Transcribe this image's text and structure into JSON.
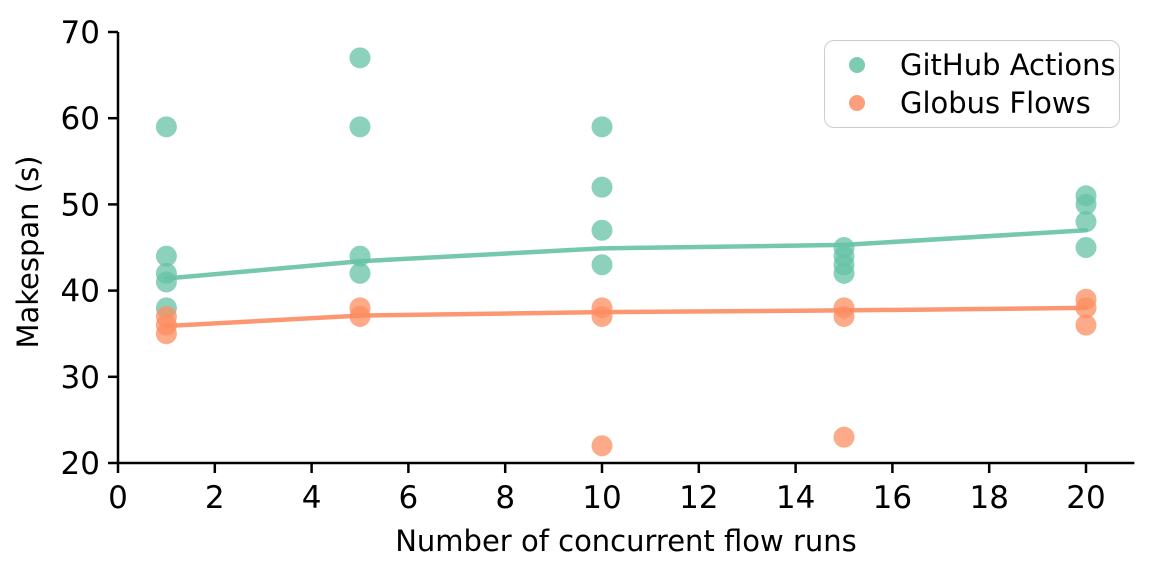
{
  "chart_data": {
    "type": "scatter",
    "title": "",
    "xlabel": "Number of concurrent flow runs",
    "ylabel": "Makespan (s)",
    "xlim": [
      0,
      21
    ],
    "ylim": [
      20,
      70
    ],
    "xticks": [
      0,
      2,
      4,
      6,
      8,
      10,
      12,
      14,
      16,
      18,
      20
    ],
    "yticks": [
      20,
      30,
      40,
      50,
      60,
      70
    ],
    "grid": false,
    "legend_position": "upper right",
    "axis_color": "#000000",
    "background_color": "#ffffff",
    "series": [
      {
        "name": "GitHub Actions",
        "color": "#66c2a5",
        "points": [
          [
            1,
            59
          ],
          [
            1,
            44
          ],
          [
            1,
            42
          ],
          [
            1,
            41
          ],
          [
            1,
            38
          ],
          [
            5,
            67
          ],
          [
            5,
            59
          ],
          [
            5,
            44
          ],
          [
            5,
            42
          ],
          [
            10,
            59
          ],
          [
            10,
            52
          ],
          [
            10,
            47
          ],
          [
            10,
            43
          ],
          [
            15,
            45
          ],
          [
            15,
            44
          ],
          [
            15,
            43
          ],
          [
            15,
            42
          ],
          [
            20,
            51
          ],
          [
            20,
            50
          ],
          [
            20,
            48
          ],
          [
            20,
            45
          ]
        ],
        "trend": [
          [
            1,
            41.4
          ],
          [
            5,
            43.4
          ],
          [
            10,
            44.9
          ],
          [
            15,
            45.3
          ],
          [
            20,
            47.0
          ]
        ]
      },
      {
        "name": "Globus Flows",
        "color": "#fc8d62",
        "points": [
          [
            1,
            37
          ],
          [
            1,
            36
          ],
          [
            1,
            35
          ],
          [
            5,
            38
          ],
          [
            5,
            37
          ],
          [
            10,
            38
          ],
          [
            10,
            37
          ],
          [
            10,
            22
          ],
          [
            15,
            38
          ],
          [
            15,
            37
          ],
          [
            15,
            23
          ],
          [
            20,
            39
          ],
          [
            20,
            38
          ],
          [
            20,
            36
          ]
        ],
        "trend": [
          [
            1,
            35.9
          ],
          [
            5,
            37.1
          ],
          [
            10,
            37.5
          ],
          [
            15,
            37.7
          ],
          [
            20,
            38.0
          ]
        ]
      }
    ]
  }
}
